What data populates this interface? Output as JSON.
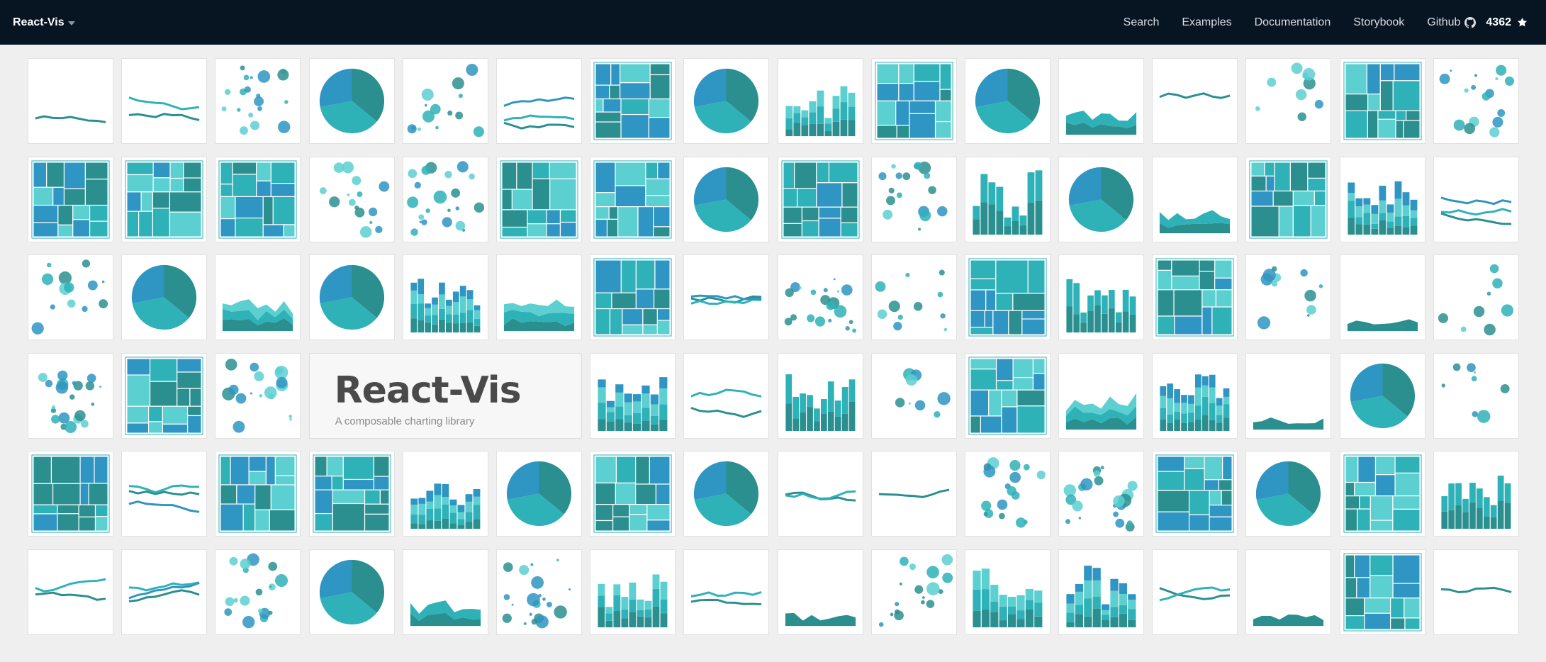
{
  "app": {
    "brand": "React-Vis",
    "nav": [
      {
        "name": "nav-search",
        "label": "Search"
      },
      {
        "name": "nav-examples",
        "label": "Examples"
      },
      {
        "name": "nav-documentation",
        "label": "Documentation"
      },
      {
        "name": "nav-storybook",
        "label": "Storybook"
      },
      {
        "name": "nav-github",
        "label": "Github",
        "icon": "github-icon"
      }
    ],
    "star_count": "4362",
    "star_icon": "star-icon"
  },
  "hero": {
    "title": "React-Vis",
    "subtitle": "A composable charting library"
  },
  "colors": {
    "dark_teal": "#2b8f8f",
    "teal": "#2fb1b8",
    "light_teal": "#5ccfd1",
    "blue": "#2f95c2",
    "header_bg": "#071421",
    "page_bg": "#efefef"
  },
  "tiles": [
    "line",
    "line",
    "scatter",
    "pie",
    "scatter",
    "line",
    "treemap",
    "pie",
    "bar",
    "treemap",
    "pie",
    "area",
    "line",
    "scatter",
    "treemap",
    "scatter",
    "treemap",
    "treemap",
    "treemap",
    "scatter",
    "scatter",
    "treemap",
    "treemap",
    "pie",
    "treemap",
    "scatter",
    "bar",
    "pie",
    "area",
    "treemap",
    "bar",
    "line",
    "scatter",
    "pie",
    "area",
    "pie",
    "bar",
    "area",
    "treemap",
    "line",
    "scatter",
    "scatter",
    "treemap",
    "bar",
    "treemap",
    "scatter",
    "area",
    "scatter",
    "scatter",
    "treemap",
    "scatter",
    "hero",
    "hero",
    "hero",
    "bar",
    "line",
    "bar",
    "scatter",
    "treemap",
    "area",
    "bar",
    "area",
    "pie",
    "scatter",
    "treemap",
    "line",
    "treemap",
    "treemap",
    "bar",
    "pie",
    "treemap",
    "pie",
    "line",
    "line",
    "scatter",
    "scatter",
    "treemap",
    "pie",
    "treemap",
    "bar",
    "line",
    "line",
    "scatter",
    "pie",
    "area",
    "scatter",
    "bar",
    "line",
    "area",
    "scatter",
    "bar",
    "bar",
    "line",
    "area",
    "treemap",
    "line"
  ]
}
